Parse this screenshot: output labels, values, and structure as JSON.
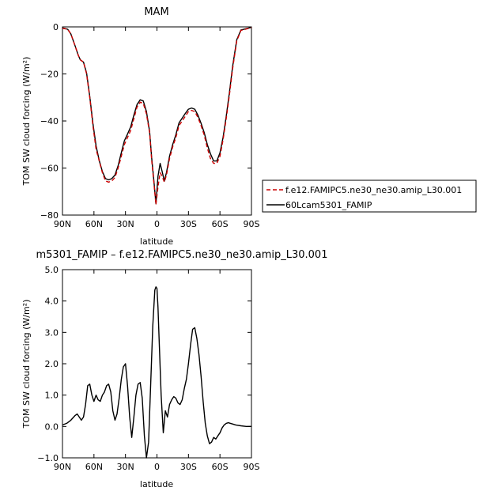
{
  "chart_data": [
    {
      "type": "line",
      "title": "MAM",
      "xlabel": "latitude",
      "ylabel": "TOM SW cloud forcing (W/m²)",
      "xlim": [
        90,
        -90
      ],
      "ylim": [
        -80,
        0
      ],
      "xticks": [
        90,
        60,
        30,
        0,
        -30,
        -60,
        -90
      ],
      "xtick_labels": [
        "90N",
        "60N",
        "30N",
        "0",
        "30S",
        "60S",
        "90S"
      ],
      "yticks": [
        -80,
        -60,
        -40,
        -20,
        0
      ],
      "ytick_labels": [
        "−80",
        "−60",
        "−40",
        "−20",
        "0"
      ],
      "legend_position": "right",
      "series": [
        {
          "name": "f.e12.FAMIPC5.ne30_ne30.amip_L30.001",
          "color": "#cc0000",
          "dash": true,
          "x": [
            90,
            85,
            82,
            78,
            75,
            73,
            70,
            67,
            64,
            61,
            58,
            55,
            52,
            49,
            46,
            43,
            40,
            37,
            34,
            31,
            28,
            25,
            22,
            19,
            16,
            13,
            10,
            7,
            5,
            3,
            1,
            -1,
            -3,
            -5,
            -7,
            -9,
            -12,
            -15,
            -18,
            -21,
            -24,
            -27,
            -30,
            -33,
            -36,
            -39,
            -42,
            -45,
            -48,
            -51,
            -54,
            -57,
            -60,
            -63,
            -66,
            -69,
            -72,
            -76,
            -80,
            -90
          ],
          "values": [
            -0.6,
            -1,
            -3,
            -8,
            -12,
            -14,
            -15,
            -20,
            -30,
            -42,
            -52,
            -57,
            -62,
            -65.5,
            -66,
            -65.5,
            -64,
            -60,
            -55,
            -50,
            -47,
            -44,
            -39,
            -34,
            -32,
            -32.5,
            -37,
            -45,
            -57,
            -66,
            -75.5,
            -68,
            -62,
            -63.5,
            -66,
            -63,
            -56,
            -51,
            -47,
            -42,
            -40,
            -38,
            -36,
            -35.5,
            -36,
            -38.5,
            -42,
            -46,
            -51.5,
            -56,
            -58,
            -58,
            -55,
            -48,
            -39,
            -29,
            -18,
            -6,
            -1.5,
            -0.3
          ]
        },
        {
          "name": "60Lcam5301_FAMIP",
          "color": "#000000",
          "dash": false,
          "x": [
            90,
            85,
            82,
            78,
            75,
            73,
            70,
            67,
            64,
            61,
            58,
            55,
            52,
            49,
            46,
            43,
            40,
            37,
            34,
            31,
            28,
            25,
            22,
            19,
            16,
            13,
            10,
            7,
            5,
            3,
            1,
            -1,
            -3,
            -5,
            -7,
            -9,
            -12,
            -15,
            -18,
            -21,
            -24,
            -27,
            -30,
            -33,
            -36,
            -39,
            -42,
            -45,
            -48,
            -51,
            -54,
            -57,
            -60,
            -63,
            -66,
            -69,
            -72,
            -76,
            -80,
            -90
          ],
          "values": [
            -0.4,
            -1,
            -3,
            -8,
            -12,
            -14,
            -15,
            -19.6,
            -29.5,
            -41,
            -50.6,
            -56.8,
            -61.5,
            -64.5,
            -65,
            -64.5,
            -63,
            -59,
            -53.5,
            -48.4,
            -45.5,
            -42.5,
            -37.5,
            -33,
            -31,
            -31.5,
            -36,
            -44.5,
            -56,
            -65,
            -75.2,
            -63.5,
            -58,
            -61.5,
            -65.5,
            -62,
            -55,
            -50,
            -45.8,
            -40.8,
            -38.8,
            -36.8,
            -35,
            -34.5,
            -35,
            -37.5,
            -41,
            -45,
            -50,
            -54,
            -57,
            -57,
            -53.5,
            -47,
            -38,
            -28,
            -17,
            -5.5,
            -1.3,
            -0.2
          ]
        }
      ]
    },
    {
      "type": "line",
      "title": "m5301_FAMIP – f.e12.FAMIPC5.ne30_ne30.amip_L30.001",
      "xlabel": "latitude",
      "ylabel": "TOM SW cloud forcing (W/m²)",
      "xlim": [
        90,
        -90
      ],
      "ylim": [
        -1.0,
        5.0
      ],
      "xticks": [
        90,
        60,
        30,
        0,
        -30,
        -60,
        -90
      ],
      "xtick_labels": [
        "90N",
        "60N",
        "30N",
        "0",
        "30S",
        "60S",
        "90S"
      ],
      "yticks": [
        -1.0,
        0.0,
        1.0,
        2.0,
        3.0,
        4.0,
        5.0
      ],
      "ytick_labels": [
        "−1.0",
        "0.0",
        "1.0",
        "2.0",
        "3.0",
        "4.0",
        "5.0"
      ],
      "series": [
        {
          "color": "#000000",
          "x": [
            90,
            86,
            82,
            78,
            76,
            74,
            72,
            70,
            68,
            66,
            64,
            62,
            60,
            58,
            56,
            54,
            52,
            50,
            48,
            46,
            44,
            42,
            40,
            38,
            36,
            34,
            32,
            30,
            28,
            26,
            24,
            22,
            20,
            18,
            16,
            14,
            12,
            10,
            8,
            6,
            4,
            2,
            1,
            0,
            -1,
            -2,
            -4,
            -6,
            -8,
            -10,
            -12,
            -14,
            -16,
            -18,
            -20,
            -22,
            -24,
            -26,
            -28,
            -30,
            -32,
            -34,
            -36,
            -38,
            -40,
            -42,
            -44,
            -46,
            -48,
            -50,
            -52,
            -54,
            -56,
            -58,
            -60,
            -62,
            -64,
            -66,
            -68,
            -70,
            -72,
            -75,
            -80,
            -85,
            -90
          ],
          "values": [
            0.05,
            0.1,
            0.2,
            0.35,
            0.4,
            0.3,
            0.2,
            0.3,
            0.7,
            1.3,
            1.35,
            1.0,
            0.8,
            1.0,
            0.85,
            0.8,
            1.0,
            1.1,
            1.3,
            1.35,
            1.1,
            0.5,
            0.2,
            0.4,
            0.9,
            1.5,
            1.9,
            2.0,
            1.3,
            0.3,
            -0.35,
            0.3,
            1.0,
            1.35,
            1.4,
            0.9,
            -0.3,
            -1.0,
            -0.5,
            1.3,
            3.2,
            4.35,
            4.45,
            4.4,
            3.8,
            2.8,
            1.0,
            -0.2,
            0.5,
            0.3,
            0.7,
            0.85,
            0.95,
            0.9,
            0.75,
            0.7,
            0.85,
            1.2,
            1.5,
            2.0,
            2.6,
            3.1,
            3.15,
            2.8,
            2.3,
            1.6,
            0.8,
            0.1,
            -0.3,
            -0.55,
            -0.5,
            -0.35,
            -0.4,
            -0.3,
            -0.2,
            -0.05,
            0.05,
            0.1,
            0.12,
            0.1,
            0.08,
            0.05,
            0.02,
            0.0,
            0.0
          ]
        }
      ]
    }
  ]
}
